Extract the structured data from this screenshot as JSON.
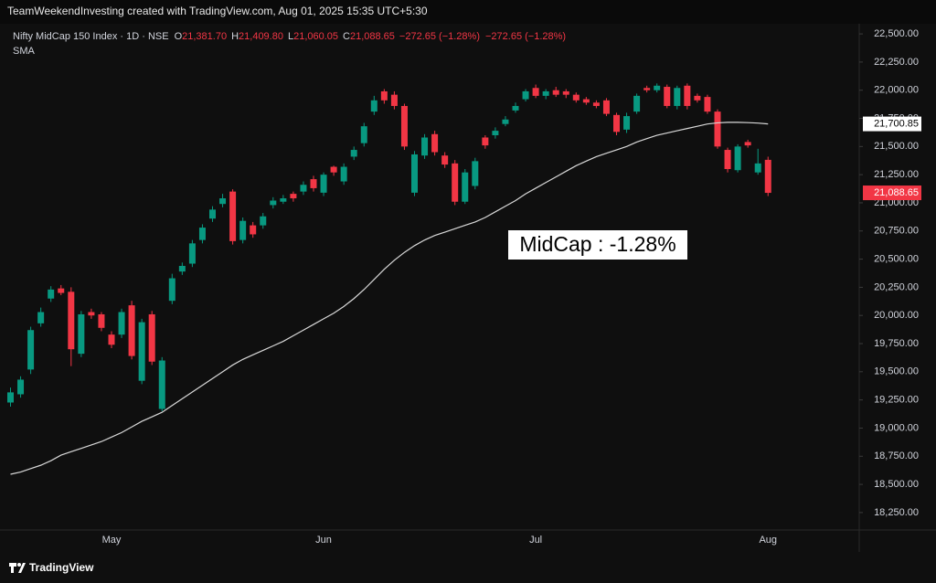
{
  "header": "TeamWeekendInvesting created with TradingView.com, Aug 01, 2025 15:35 UTC+5:30",
  "footer": "TradingView",
  "chart_data": {
    "type": "candlestick",
    "title": "Nifty MidCap 150 Index · 1D · NSE",
    "ohlc_legend": [
      {
        "key": "O",
        "value": "21,381.70"
      },
      {
        "key": "H",
        "value": "21,409.80"
      },
      {
        "key": "L",
        "value": "21,060.05"
      },
      {
        "key": "C",
        "value": "21,088.65"
      }
    ],
    "change_labels": [
      "−272.65 (−1.28%)",
      "−272.65 (−1.28%)"
    ],
    "annotation": "MidCap : -1.28%",
    "last_price_label": "21,088.65",
    "sma_label": "21,700.85",
    "up_color": "#089981",
    "down_color": "#f23645",
    "grid": false,
    "categories": [
      null,
      null,
      null,
      null,
      null,
      null,
      null,
      null,
      null,
      null,
      "May",
      null,
      null,
      null,
      null,
      null,
      null,
      null,
      null,
      null,
      null,
      null,
      null,
      null,
      null,
      null,
      null,
      null,
      null,
      null,
      null,
      "Jun",
      null,
      null,
      null,
      null,
      null,
      null,
      null,
      null,
      null,
      null,
      null,
      null,
      null,
      null,
      null,
      null,
      null,
      null,
      null,
      null,
      "Jul",
      null,
      null,
      null,
      null,
      null,
      null,
      null,
      null,
      null,
      null,
      null,
      null,
      null,
      null,
      null,
      null,
      null,
      null,
      null,
      null,
      null,
      null,
      "Aug"
    ],
    "open": [
      19227,
      19300,
      19520,
      19930,
      20150,
      20240,
      20210,
      19660,
      20030,
      20010,
      19830,
      19830,
      20090,
      19420,
      20010,
      19170,
      20130,
      20390,
      20460,
      20670,
      20860,
      20990,
      21100,
      20670,
      20800,
      20800,
      20980,
      21010,
      21080,
      21100,
      21210,
      21090,
      21320,
      21190,
      21410,
      21530,
      21810,
      21990,
      21960,
      21860,
      21090,
      21420,
      21610,
      21420,
      21350,
      21010,
      21150,
      21580,
      21600,
      21700,
      21820,
      21920,
      22020,
      21950,
      22000,
      21990,
      21960,
      21920,
      21890,
      21910,
      21780,
      21650,
      21810,
      22020,
      22000,
      22030,
      21860,
      22040,
      21950,
      21940,
      21810,
      21470,
      21290,
      21540,
      21270,
      21381.7
    ],
    "high": [
      19360,
      19460,
      19900,
      20070,
      20260,
      20270,
      20250,
      20040,
      20060,
      20030,
      19860,
      20060,
      20130,
      19970,
      20040,
      19630,
      20370,
      20470,
      20670,
      20810,
      20970,
      21080,
      21120,
      20870,
      20830,
      20910,
      21050,
      21070,
      21100,
      21190,
      21240,
      21270,
      21330,
      21350,
      21500,
      21710,
      21950,
      22010,
      21990,
      21880,
      21460,
      21610,
      21640,
      21450,
      21380,
      21300,
      21400,
      21600,
      21670,
      21770,
      21890,
      22010,
      22050,
      22010,
      22030,
      22010,
      21980,
      21940,
      21910,
      21930,
      21800,
      21800,
      21970,
      22040,
      22060,
      22050,
      22040,
      22060,
      21970,
      21960,
      21830,
      21490,
      21520,
      21560,
      21480,
      21409.8
    ],
    "low": [
      19190,
      19270,
      19480,
      19900,
      20120,
      20180,
      19550,
      19630,
      19970,
      19860,
      19710,
      19800,
      19610,
      19390,
      19560,
      19150,
      20100,
      20360,
      20430,
      20640,
      20830,
      20960,
      20630,
      20640,
      20690,
      20770,
      20950,
      20990,
      21010,
      21070,
      21100,
      21060,
      21240,
      21160,
      21380,
      21500,
      21780,
      21880,
      21830,
      21470,
      21060,
      21390,
      21420,
      21310,
      20980,
      20990,
      21120,
      21480,
      21570,
      21680,
      21800,
      21900,
      21930,
      21920,
      21940,
      21930,
      21890,
      21870,
      21840,
      21770,
      21600,
      21620,
      21790,
      21980,
      21980,
      21840,
      21830,
      21830,
      21890,
      21790,
      21480,
      21270,
      21270,
      21490,
      21250,
      21060.05
    ],
    "close": [
      19317,
      19430,
      19870,
      20030,
      20230,
      20200,
      19700,
      20010,
      20000,
      19890,
      19740,
      20030,
      19640,
      19940,
      19590,
      19600,
      20330,
      20440,
      20640,
      20780,
      20940,
      21040,
      20660,
      20840,
      20720,
      20880,
      21020,
      21040,
      21040,
      21160,
      21130,
      21250,
      21270,
      21320,
      21470,
      21680,
      21910,
      21910,
      21860,
      21500,
      21430,
      21580,
      21450,
      21340,
      21010,
      21270,
      21370,
      21510,
      21640,
      21740,
      21860,
      21990,
      21950,
      21990,
      21960,
      21960,
      21910,
      21890,
      21860,
      21790,
      21630,
      21770,
      21950,
      22000,
      22040,
      21860,
      22020,
      21860,
      21910,
      21810,
      21500,
      21300,
      21500,
      21510,
      21350,
      21088.65
    ],
    "series": [
      {
        "name": "SMA",
        "color": "#d9d9d9",
        "values": [
          18590,
          18610,
          18640,
          18670,
          18710,
          18760,
          18790,
          18820,
          18850,
          18880,
          18920,
          18960,
          19010,
          19060,
          19100,
          19140,
          19200,
          19260,
          19320,
          19380,
          19440,
          19500,
          19560,
          19610,
          19650,
          19690,
          19730,
          19770,
          19820,
          19870,
          19920,
          19970,
          20020,
          20080,
          20150,
          20230,
          20320,
          20410,
          20490,
          20560,
          20620,
          20670,
          20710,
          20740,
          20770,
          20800,
          20830,
          20870,
          20920,
          20970,
          21020,
          21080,
          21130,
          21180,
          21230,
          21280,
          21330,
          21370,
          21410,
          21440,
          21470,
          21500,
          21540,
          21570,
          21600,
          21620,
          21640,
          21660,
          21680,
          21700,
          21710,
          21715,
          21715,
          21712,
          21708,
          21700.85
        ]
      }
    ],
    "ylim": [
      18095,
      22590
    ],
    "yticks": [
      {
        "value": 18250,
        "label": "18,250.00"
      },
      {
        "value": 18500,
        "label": "18,500.00"
      },
      {
        "value": 18750,
        "label": "18,750.00"
      },
      {
        "value": 19000,
        "label": "19,000.00"
      },
      {
        "value": 19250,
        "label": "19,250.00"
      },
      {
        "value": 19500,
        "label": "19,500.00"
      },
      {
        "value": 19750,
        "label": "19,750.00"
      },
      {
        "value": 20000,
        "label": "20,000.00"
      },
      {
        "value": 20250,
        "label": "20,250.00"
      },
      {
        "value": 20500,
        "label": "20,500.00"
      },
      {
        "value": 20750,
        "label": "20,750.00"
      },
      {
        "value": 21000,
        "label": "21,000.00"
      },
      {
        "value": 21250,
        "label": "21,250.00"
      },
      {
        "value": 21500,
        "label": "21,500.00"
      },
      {
        "value": 21750,
        "label": "21,750.00"
      },
      {
        "value": 22000,
        "label": "22,000.00"
      },
      {
        "value": 22250,
        "label": "22,250.00"
      },
      {
        "value": 22500,
        "label": "22,500.00"
      }
    ]
  }
}
